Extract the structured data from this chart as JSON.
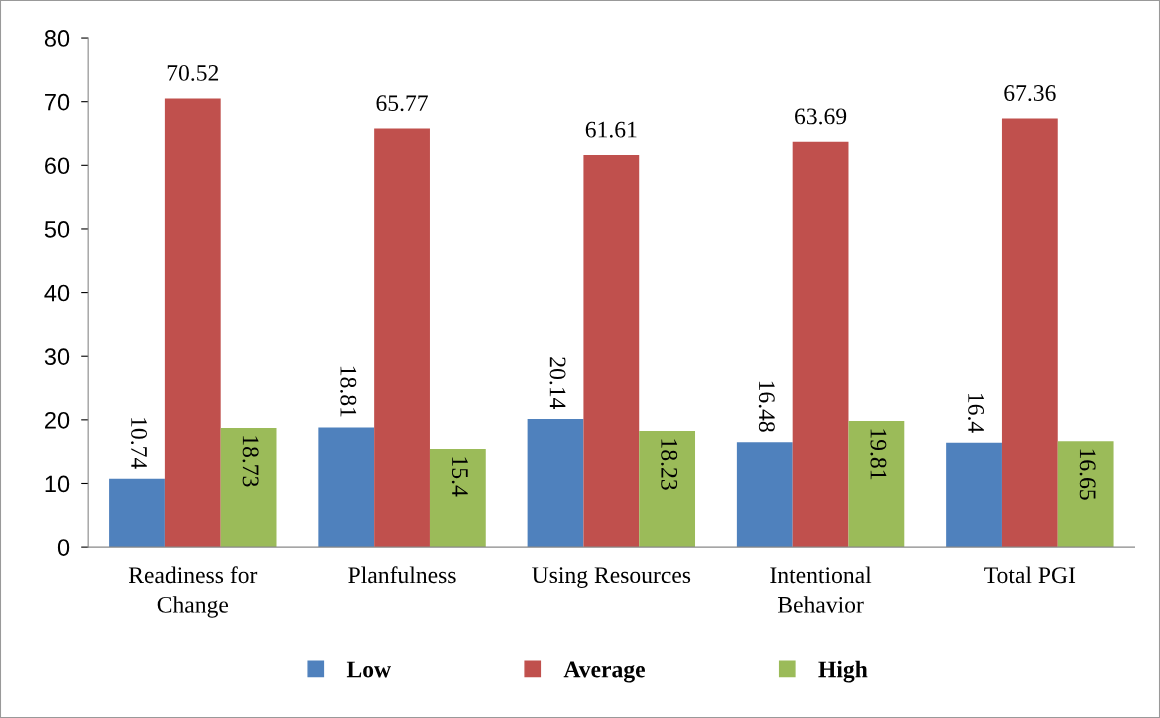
{
  "chart_data": {
    "type": "bar",
    "categories": [
      "Readiness for\nChange",
      "Planfulness",
      "Using Resources",
      "Intentional\nBehavior",
      "Total PGI"
    ],
    "series": [
      {
        "name": "Low",
        "color": "#4f81bd",
        "values": [
          10.74,
          18.81,
          20.14,
          16.48,
          16.4
        ]
      },
      {
        "name": "Average",
        "color": "#c0504d",
        "values": [
          70.52,
          65.77,
          61.61,
          63.69,
          67.36
        ]
      },
      {
        "name": "High",
        "color": "#9bbb59",
        "values": [
          18.73,
          15.4,
          18.23,
          19.81,
          16.65
        ]
      }
    ],
    "ylim": [
      0,
      80
    ],
    "yticks": [
      0,
      10,
      20,
      30,
      40,
      50,
      60,
      70,
      80
    ],
    "grid": false,
    "legend": "bottom",
    "data_labels": true
  }
}
